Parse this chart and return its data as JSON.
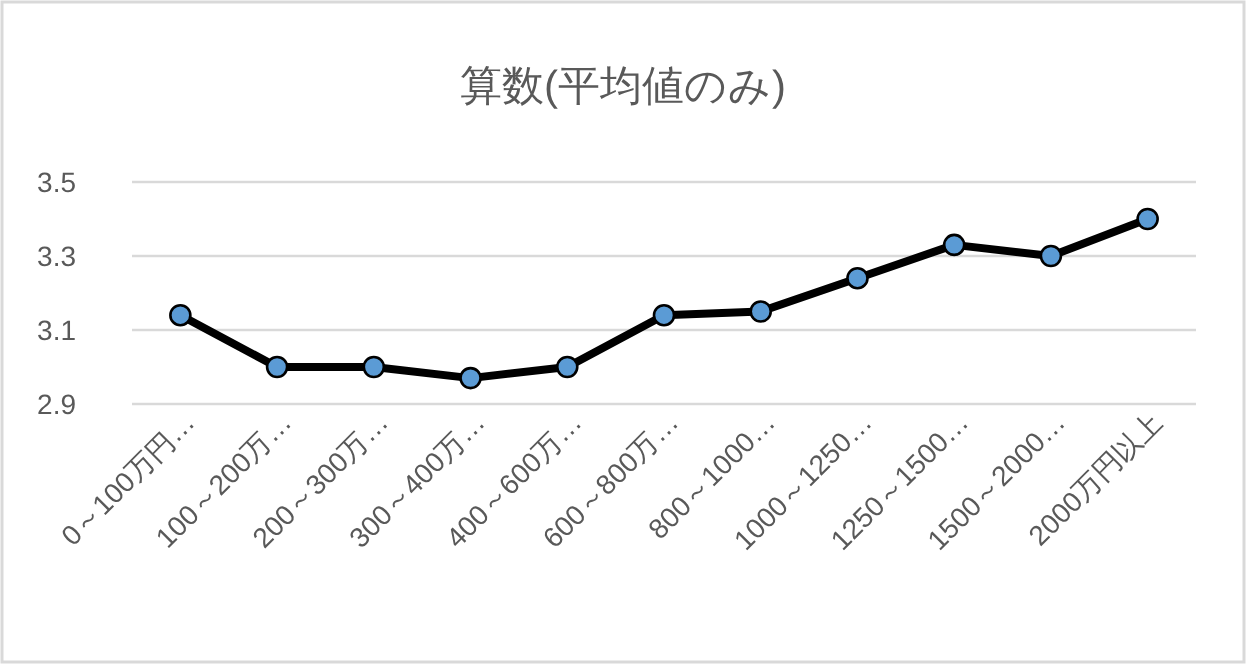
{
  "chart_data": {
    "type": "line",
    "title": "算数(平均値のみ)",
    "categories": [
      "0～100万円…",
      "100～200万…",
      "200～300万…",
      "300～400万…",
      "400～600万…",
      "600～800万…",
      "800～1000…",
      "1000～1250…",
      "1250～1500…",
      "1500～2000…",
      "2000万円以上"
    ],
    "series": [
      {
        "color": "#000000",
        "values": [
          3.14,
          3.0,
          3.0,
          2.97,
          3.0,
          3.14,
          3.15,
          3.24,
          3.33,
          3.3,
          3.4
        ]
      }
    ],
    "marker": "circle",
    "line_style": "solid",
    "ylim": [
      2.9,
      3.5
    ],
    "yticks": [
      {
        "value": 2.9,
        "label": "2.9"
      },
      {
        "value": 3.1,
        "label": "3.1"
      },
      {
        "value": 3.3,
        "label": "3.3"
      },
      {
        "value": 3.5,
        "label": "3.5"
      }
    ],
    "grid": "y"
  }
}
